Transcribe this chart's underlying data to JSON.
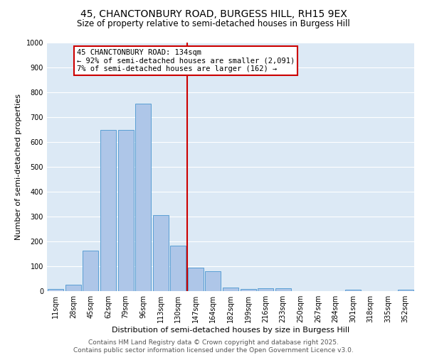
{
  "title1": "45, CHANCTONBURY ROAD, BURGESS HILL, RH15 9EX",
  "title2": "Size of property relative to semi-detached houses in Burgess Hill",
  "xlabel": "Distribution of semi-detached houses by size in Burgess Hill",
  "ylabel": "Number of semi-detached properties",
  "bin_labels": [
    "11sqm",
    "28sqm",
    "45sqm",
    "62sqm",
    "79sqm",
    "96sqm",
    "113sqm",
    "130sqm",
    "147sqm",
    "164sqm",
    "182sqm",
    "199sqm",
    "216sqm",
    "233sqm",
    "250sqm",
    "267sqm",
    "284sqm",
    "301sqm",
    "318sqm",
    "335sqm",
    "352sqm"
  ],
  "bar_values": [
    8,
    25,
    163,
    648,
    648,
    755,
    305,
    182,
    95,
    80,
    15,
    10,
    12,
    12,
    0,
    0,
    0,
    5,
    0,
    0,
    5
  ],
  "bar_color": "#aec6e8",
  "bar_edge_color": "#5a9fd4",
  "vline_x": 7.5,
  "vline_color": "#cc0000",
  "annotation_text": "45 CHANCTONBURY ROAD: 134sqm\n← 92% of semi-detached houses are smaller (2,091)\n7% of semi-detached houses are larger (162) →",
  "annotation_box_color": "#ffffff",
  "annotation_box_edge_color": "#cc0000",
  "ylim": [
    0,
    1000
  ],
  "yticks": [
    0,
    100,
    200,
    300,
    400,
    500,
    600,
    700,
    800,
    900,
    1000
  ],
  "background_color": "#dce9f5",
  "footer_text": "Contains HM Land Registry data © Crown copyright and database right 2025.\nContains public sector information licensed under the Open Government Licence v3.0.",
  "title_fontsize": 10,
  "subtitle_fontsize": 8.5,
  "axis_label_fontsize": 8,
  "tick_fontsize": 7,
  "annotation_fontsize": 7.5,
  "footer_fontsize": 6.5
}
